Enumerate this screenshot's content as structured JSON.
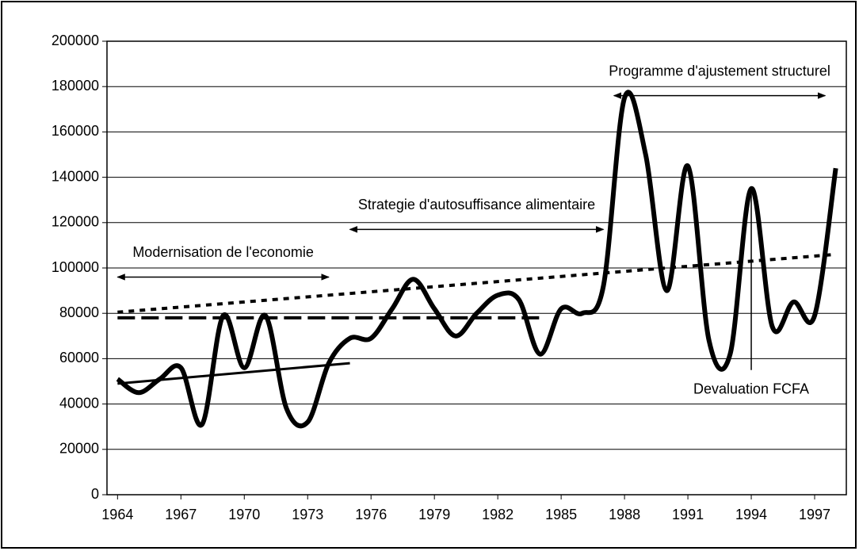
{
  "chart_data": {
    "type": "line",
    "x": [
      1964,
      1965,
      1966,
      1967,
      1968,
      1969,
      1970,
      1971,
      1972,
      1973,
      1974,
      1975,
      1976,
      1977,
      1978,
      1979,
      1980,
      1981,
      1982,
      1983,
      1984,
      1985,
      1986,
      1987,
      1988,
      1989,
      1990,
      1991,
      1992,
      1993,
      1994,
      1995,
      1996,
      1997,
      1998
    ],
    "series": [
      {
        "color": "#000000",
        "values": [
          51000,
          45000,
          51000,
          56000,
          31000,
          79000,
          56000,
          79000,
          38000,
          32000,
          58000,
          69000,
          69000,
          82000,
          95000,
          82000,
          70000,
          80000,
          88000,
          86000,
          62000,
          82000,
          80000,
          92000,
          175000,
          150000,
          90000,
          145000,
          68000,
          62000,
          135000,
          74000,
          85000,
          79000,
          144000
        ]
      }
    ],
    "trendlines": [
      {
        "style": "solid",
        "x": [
          1964,
          1975
        ],
        "values": [
          49000,
          58000
        ]
      },
      {
        "style": "dashed",
        "x": [
          1964,
          1984
        ],
        "values": [
          78000,
          78000
        ]
      },
      {
        "style": "dotted",
        "x": [
          1964,
          1998
        ],
        "values": [
          80500,
          106000
        ]
      }
    ],
    "annotations": [
      {
        "text": "Modernisation de l'economie",
        "x_start": 1964,
        "x_end": 1974,
        "y": 96000
      },
      {
        "text": "Strategie d'autosuffisance alimentaire",
        "x_start": 1975,
        "x_end": 1987,
        "y": 117000
      },
      {
        "text": "Programme d'ajustement structurel",
        "x_start": 1987.5,
        "x_end": 1997.5,
        "y": 176000
      }
    ],
    "event": {
      "text": "Devaluation FCFA",
      "x": 1994,
      "y_start": 135000,
      "y_end": 55000
    },
    "xlim": [
      1963.5,
      1998.5
    ],
    "xticks": [
      1964,
      1967,
      1970,
      1973,
      1976,
      1979,
      1982,
      1985,
      1988,
      1991,
      1994,
      1997
    ],
    "ylim": [
      0,
      200000
    ],
    "yticks": [
      0,
      20000,
      40000,
      60000,
      80000,
      100000,
      120000,
      140000,
      160000,
      180000,
      200000
    ],
    "grid": true
  }
}
